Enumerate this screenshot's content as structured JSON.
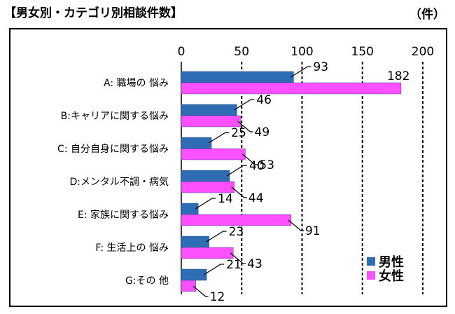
{
  "header": {
    "title": "【男女別・カテゴリ別相談件数】",
    "unit": "（件）"
  },
  "colors": {
    "male": "#2E6DB4",
    "female": "#FF4FFF",
    "axis": "#000000",
    "grid": "#000000"
  },
  "legend": {
    "items": [
      {
        "label": "男性"
      },
      {
        "label": "女性"
      }
    ]
  },
  "chart_data": {
    "type": "bar",
    "orientation": "horizontal",
    "title": "男女別・カテゴリ別相談件数",
    "xlim": [
      0,
      200
    ],
    "xticks": [
      0,
      50,
      100,
      150,
      200
    ],
    "grid": "vertical dashed at 50, 100, 150, 200",
    "legend_position": "bottom-right",
    "categories": [
      "A: 職場の 悩み",
      "B:キャリアに関する悩み",
      "C: 自分自身に関する悩み",
      "D:メンタル不調・病気",
      "E: 家族に関する悩み",
      "F: 生活上の 悩み",
      "G:その 他"
    ],
    "series": [
      {
        "name": "男性",
        "values": [
          93,
          46,
          25,
          40,
          14,
          23,
          21
        ]
      },
      {
        "name": "女性",
        "values": [
          182,
          49,
          53,
          44,
          91,
          43,
          12
        ]
      }
    ]
  }
}
